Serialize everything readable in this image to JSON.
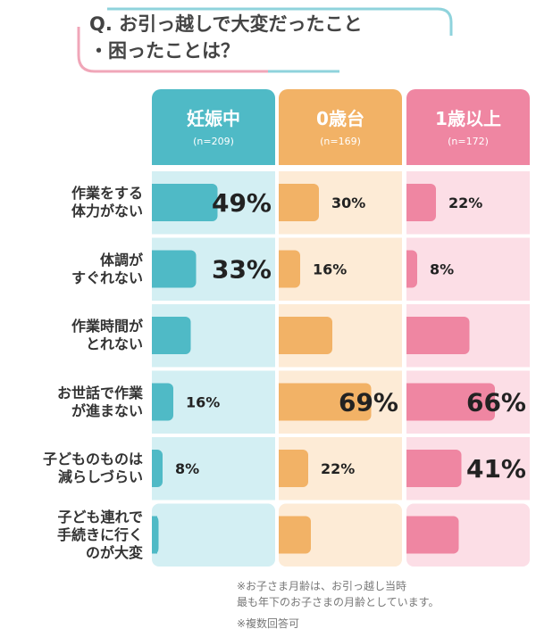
{
  "chart_data": {
    "type": "bar",
    "title": "Q. お引っ越しで大変だったこと\n・困ったことは？",
    "categories": [
      "作業をする\n体力がない",
      "体調が\nすぐれない",
      "作業時間が\nとれない",
      "お世話で作業\nが進まない",
      "子どものものは\n減らしづらい",
      "子ども連れで\n手続きに行く\nのが大変"
    ],
    "xlim": [
      0,
      92
    ],
    "series": [
      {
        "name": "妊娠中",
        "n_label": "(n=209)",
        "color": "#4fbac6",
        "background": "#d3eff3",
        "values": [
          49,
          33,
          29,
          16,
          8,
          5
        ],
        "value_labels": [
          "49%",
          "33%",
          null,
          "16%",
          "8%",
          null
        ],
        "highlight": [
          true,
          true,
          false,
          false,
          false,
          false
        ]
      },
      {
        "name": "0歳台",
        "n_label": "(n=169)",
        "color": "#f2b266",
        "background": "#fdebd6",
        "values": [
          30,
          16,
          40,
          69,
          22,
          24
        ],
        "value_labels": [
          "30%",
          "16%",
          null,
          "69%",
          "22%",
          null
        ],
        "highlight": [
          false,
          false,
          false,
          true,
          false,
          false
        ]
      },
      {
        "name": "1歳以上",
        "n_label": "(n=172)",
        "color": "#ef86a2",
        "background": "#fcdee6",
        "values": [
          22,
          8,
          47,
          66,
          41,
          39
        ],
        "value_labels": [
          "22%",
          "8%",
          null,
          "66%",
          "41%",
          null
        ],
        "highlight": [
          false,
          false,
          false,
          true,
          true,
          false
        ]
      }
    ],
    "notes": [
      "※お子さま月齢は、お引っ越し当時\n最も年下のお子さまの月齢としています。",
      "※複数回答可"
    ]
  }
}
